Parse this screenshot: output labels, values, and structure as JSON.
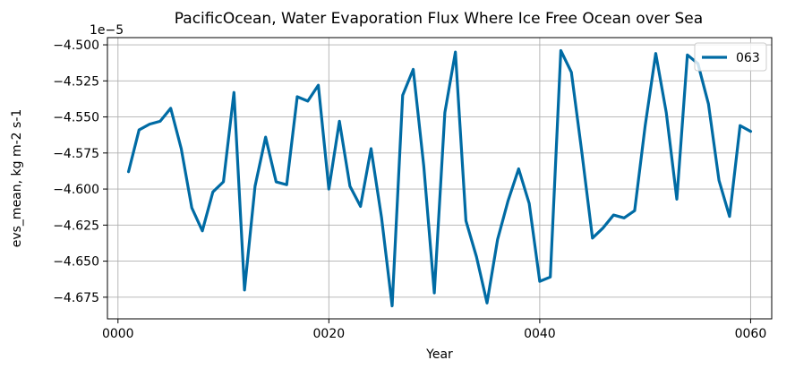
{
  "chart_data": {
    "type": "line",
    "title": "PacificOcean, Water Evaporation Flux Where Ice Free Ocean over Sea",
    "xlabel": "Year",
    "ylabel": "evs_mean, kg m-2 s-1",
    "offset_label": "1e−5",
    "xlim": [
      -1,
      62
    ],
    "ylim": [
      -4.69,
      -4.495
    ],
    "x_ticks": [
      0,
      20,
      40,
      60
    ],
    "x_tick_labels": [
      "0000",
      "0020",
      "0040",
      "0060"
    ],
    "y_ticks": [
      -4.675,
      -4.65,
      -4.625,
      -4.6,
      -4.575,
      -4.55,
      -4.525,
      -4.5
    ],
    "y_tick_labels": [
      "−4.675",
      "−4.650",
      "−4.625",
      "−4.600",
      "−4.575",
      "−4.550",
      "−4.525",
      "−4.500"
    ],
    "grid": true,
    "legend_position": "upper right",
    "series": [
      {
        "name": "063",
        "color": "#006ba4",
        "x": [
          1,
          2,
          3,
          4,
          5,
          6,
          7,
          8,
          9,
          10,
          11,
          12,
          13,
          14,
          15,
          16,
          17,
          18,
          19,
          20,
          21,
          22,
          23,
          24,
          25,
          26,
          27,
          28,
          29,
          30,
          31,
          32,
          33,
          34,
          35,
          36,
          37,
          38,
          39,
          40,
          41,
          42,
          43,
          44,
          45,
          46,
          47,
          48,
          49,
          50,
          51,
          52,
          53,
          54,
          55,
          56,
          57,
          58,
          59,
          60
        ],
        "y": [
          -4.588,
          -4.559,
          -4.555,
          -4.553,
          -4.544,
          -4.572,
          -4.613,
          -4.629,
          -4.602,
          -4.595,
          -4.533,
          -4.67,
          -4.598,
          -4.564,
          -4.595,
          -4.597,
          -4.536,
          -4.539,
          -4.528,
          -4.6,
          -4.553,
          -4.598,
          -4.612,
          -4.572,
          -4.62,
          -4.681,
          -4.535,
          -4.517,
          -4.584,
          -4.672,
          -4.547,
          -4.505,
          -4.622,
          -4.647,
          -4.679,
          -4.635,
          -4.608,
          -4.586,
          -4.61,
          -4.664,
          -4.661,
          -4.504,
          -4.519,
          -4.575,
          -4.634,
          -4.627,
          -4.618,
          -4.62,
          -4.615,
          -4.556,
          -4.506,
          -4.547,
          -4.607,
          -4.507,
          -4.513,
          -4.541,
          -4.594,
          -4.619,
          -4.556,
          -4.56
        ]
      }
    ]
  }
}
